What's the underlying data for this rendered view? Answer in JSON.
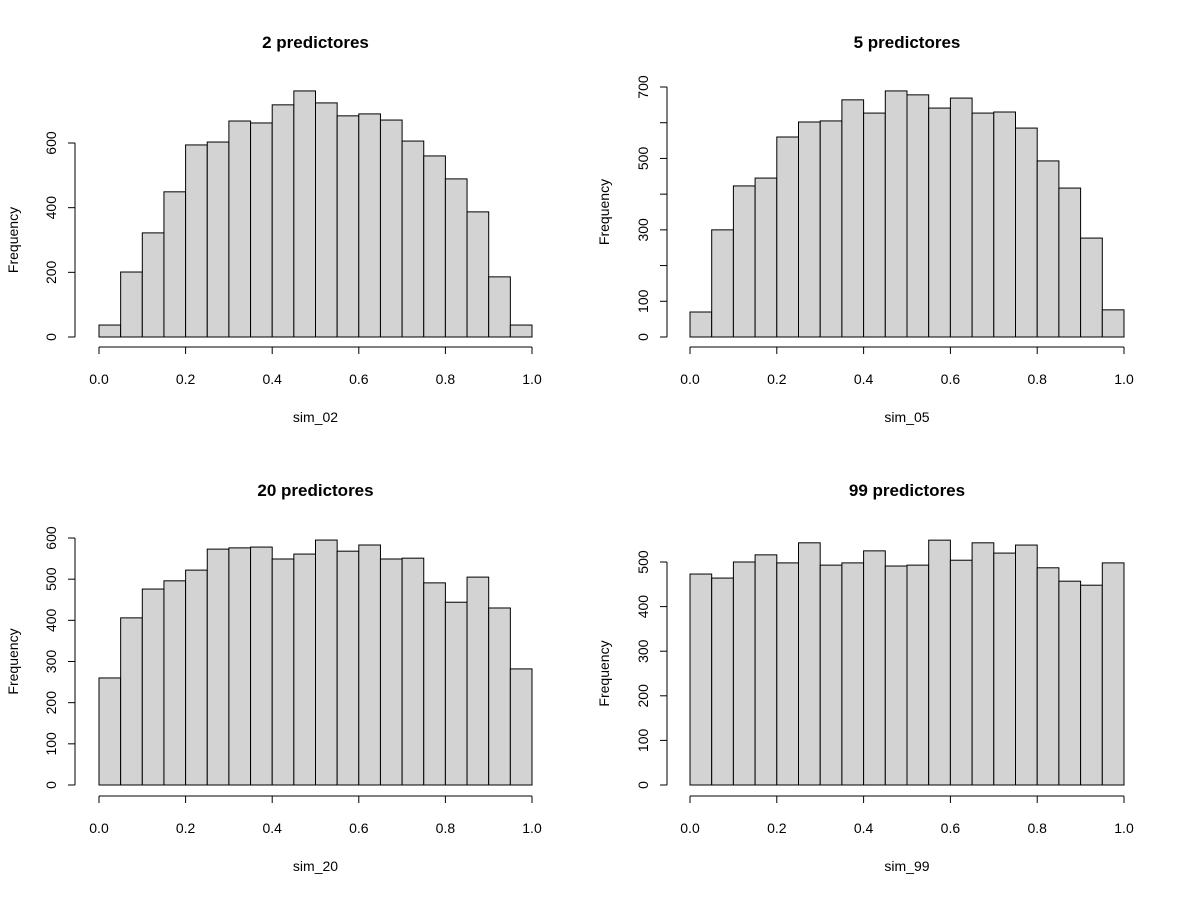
{
  "chart_data": [
    {
      "type": "bar",
      "title": "2 predictores",
      "xlabel": "sim_02",
      "ylabel": "Frequency",
      "bin_edges": [
        0,
        0.05,
        0.1,
        0.15,
        0.2,
        0.25,
        0.3,
        0.35,
        0.4,
        0.45,
        0.5,
        0.55,
        0.6,
        0.65,
        0.7,
        0.75,
        0.8,
        0.85,
        0.9,
        0.95,
        1.0
      ],
      "values": [
        37,
        201,
        322,
        449,
        594,
        603,
        668,
        662,
        718,
        761,
        724,
        684,
        690,
        671,
        606,
        560,
        489,
        387,
        186,
        37
      ],
      "xticks": [
        "0.0",
        "0.2",
        "0.4",
        "0.6",
        "0.8",
        "1.0"
      ],
      "yticks": [
        0,
        200,
        400,
        600
      ],
      "ytick_labels": [
        "0",
        "200",
        "400",
        "600"
      ],
      "xlim": [
        0,
        1
      ],
      "ylim": [
        0,
        600
      ]
    },
    {
      "type": "bar",
      "title": "5 predictores",
      "xlabel": "sim_05",
      "ylabel": "Frequency",
      "bin_edges": [
        0,
        0.05,
        0.1,
        0.15,
        0.2,
        0.25,
        0.3,
        0.35,
        0.4,
        0.45,
        0.5,
        0.55,
        0.6,
        0.65,
        0.7,
        0.75,
        0.8,
        0.85,
        0.9,
        0.95,
        1.0
      ],
      "values": [
        70,
        300,
        423,
        445,
        560,
        602,
        605,
        664,
        627,
        689,
        678,
        641,
        669,
        627,
        630,
        585,
        493,
        417,
        277,
        76
      ],
      "xticks": [
        "0.0",
        "0.2",
        "0.4",
        "0.6",
        "0.8",
        "1.0"
      ],
      "yticks": [
        0,
        100,
        200,
        300,
        400,
        500,
        600,
        700
      ],
      "ytick_labels": [
        "0",
        "100",
        "",
        "300",
        "",
        "500",
        "",
        "700"
      ],
      "xlim": [
        0,
        1
      ],
      "ylim": [
        0,
        700
      ]
    },
    {
      "type": "bar",
      "title": "20 predictores",
      "xlabel": "sim_20",
      "ylabel": "Frequency",
      "bin_edges": [
        0,
        0.05,
        0.1,
        0.15,
        0.2,
        0.25,
        0.3,
        0.35,
        0.4,
        0.45,
        0.5,
        0.55,
        0.6,
        0.65,
        0.7,
        0.75,
        0.8,
        0.85,
        0.9,
        0.95,
        1.0
      ],
      "values": [
        260,
        406,
        476,
        496,
        522,
        573,
        576,
        578,
        549,
        561,
        595,
        568,
        583,
        549,
        551,
        491,
        444,
        505,
        430,
        282
      ],
      "xticks": [
        "0.0",
        "0.2",
        "0.4",
        "0.6",
        "0.8",
        "1.0"
      ],
      "yticks": [
        0,
        100,
        200,
        300,
        400,
        500,
        600
      ],
      "ytick_labels": [
        "0",
        "100",
        "200",
        "300",
        "400",
        "500",
        "600"
      ],
      "xlim": [
        0,
        1
      ],
      "ylim": [
        0,
        600
      ]
    },
    {
      "type": "bar",
      "title": "99 predictores",
      "xlabel": "sim_99",
      "ylabel": "Frequency",
      "bin_edges": [
        0,
        0.05,
        0.1,
        0.15,
        0.2,
        0.25,
        0.3,
        0.35,
        0.4,
        0.45,
        0.5,
        0.55,
        0.6,
        0.65,
        0.7,
        0.75,
        0.8,
        0.85,
        0.9,
        0.95,
        1.0
      ],
      "values": [
        473,
        464,
        500,
        516,
        498,
        543,
        493,
        498,
        525,
        491,
        493,
        549,
        504,
        543,
        520,
        538,
        487,
        457,
        448,
        498
      ],
      "xticks": [
        "0.0",
        "0.2",
        "0.4",
        "0.6",
        "0.8",
        "1.0"
      ],
      "yticks": [
        0,
        100,
        200,
        300,
        400,
        500
      ],
      "ytick_labels": [
        "0",
        "100",
        "200",
        "300",
        "400",
        "500"
      ],
      "xlim": [
        0,
        1
      ],
      "ylim": [
        0,
        500
      ]
    }
  ],
  "colors": {
    "bar_fill": "#d3d3d3",
    "bar_stroke": "#000000"
  }
}
